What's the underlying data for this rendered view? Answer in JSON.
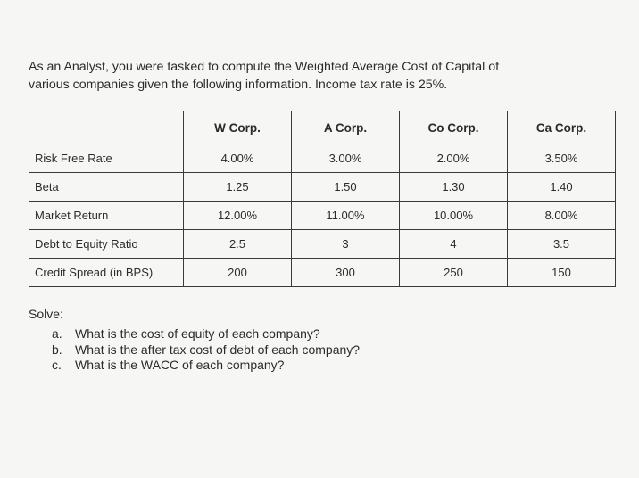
{
  "intro": {
    "line1": "As an Analyst, you were tasked to compute the Weighted Average Cost of Capital of",
    "line2": "various companies given the following information. Income tax rate is 25%."
  },
  "table": {
    "headers": [
      "",
      "W Corp.",
      "A Corp.",
      "Co Corp.",
      "Ca Corp."
    ],
    "rows": [
      {
        "label": "Risk Free Rate",
        "values": [
          "4.00%",
          "3.00%",
          "2.00%",
          "3.50%"
        ]
      },
      {
        "label": "Beta",
        "values": [
          "1.25",
          "1.50",
          "1.30",
          "1.40"
        ]
      },
      {
        "label": "Market Return",
        "values": [
          "12.00%",
          "11.00%",
          "10.00%",
          "8.00%"
        ]
      },
      {
        "label": "Debt to Equity Ratio",
        "values": [
          "2.5",
          "3",
          "4",
          "3.5"
        ]
      },
      {
        "label": "Credit Spread (in BPS)",
        "values": [
          "200",
          "300",
          "250",
          "150"
        ]
      }
    ]
  },
  "solve": {
    "label": "Solve:",
    "questions": [
      {
        "marker": "a.",
        "text": "What is the cost of equity of each company?"
      },
      {
        "marker": "b.",
        "text": "What is the after tax cost of debt of each company?"
      },
      {
        "marker": "c.",
        "text": "What is the WACC of each company?"
      }
    ]
  }
}
